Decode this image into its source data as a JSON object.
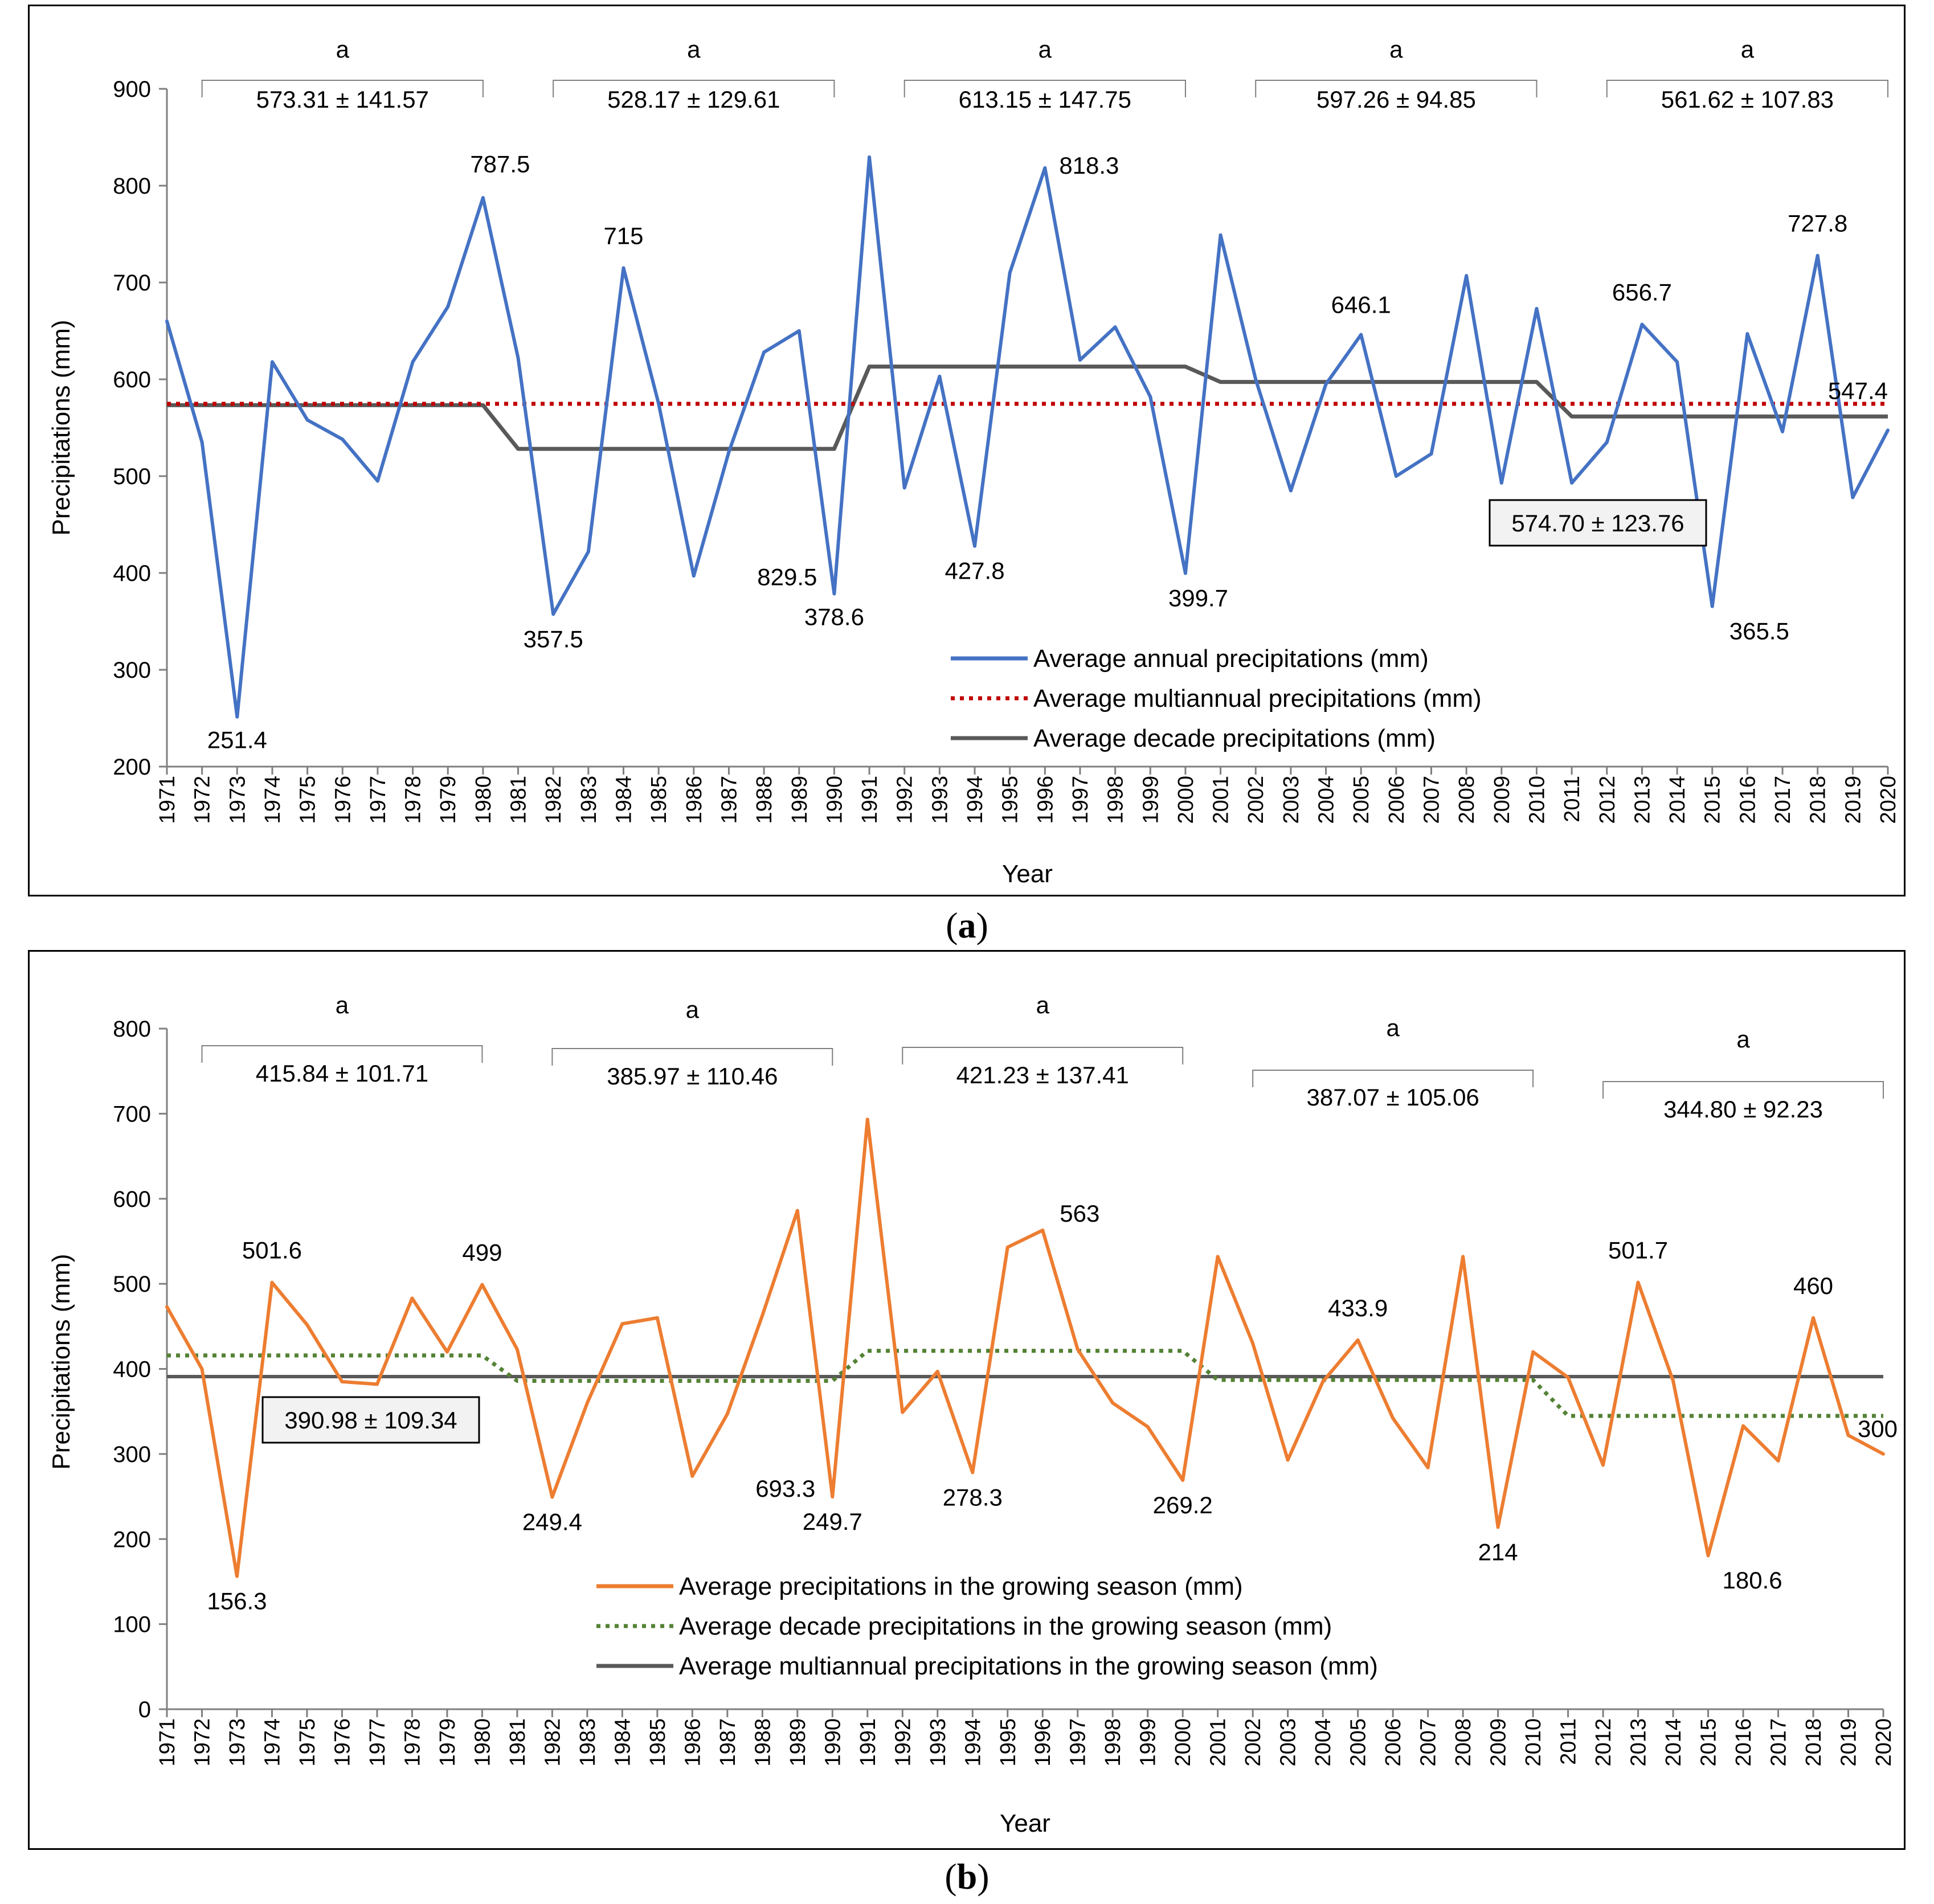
{
  "chart_data": [
    {
      "type": "line",
      "panel_label": "a",
      "xlabel": "Year",
      "ylabel": "Precipitations (mm)",
      "ylim": [
        200,
        900
      ],
      "yticks": [
        200,
        300,
        400,
        500,
        600,
        700,
        800,
        900
      ],
      "x": [
        1971,
        1972,
        1973,
        1974,
        1975,
        1976,
        1977,
        1978,
        1979,
        1980,
        1981,
        1982,
        1983,
        1984,
        1985,
        1986,
        1987,
        1988,
        1989,
        1990,
        1991,
        1992,
        1993,
        1994,
        1995,
        1996,
        1997,
        1998,
        1999,
        2000,
        2001,
        2002,
        2003,
        2004,
        2005,
        2006,
        2007,
        2008,
        2009,
        2010,
        2011,
        2012,
        2013,
        2014,
        2015,
        2016,
        2017,
        2018,
        2019,
        2020
      ],
      "series": [
        {
          "name": "Average annual precipitations (mm)",
          "color": "#4472c4",
          "style": "solid",
          "values": [
            660,
            535,
            251.4,
            618,
            558,
            538,
            495,
            618,
            675,
            787.5,
            622,
            357.5,
            422,
            715,
            575,
            397,
            525,
            628,
            650,
            378.6,
            829.5,
            488,
            603,
            427.8,
            710,
            818.3,
            620,
            654,
            582,
            399.7,
            749,
            600,
            485,
            595,
            646.1,
            500,
            523,
            707,
            493,
            673,
            493,
            535,
            656.7,
            618,
            365.5,
            647,
            546,
            727.8,
            478,
            547.4
          ]
        },
        {
          "name": "Average multiannual precipitations (mm)",
          "color": "#c00000",
          "style": "dotted",
          "value": 574.7
        },
        {
          "name": "Average decade precipitations (mm)",
          "color": "#595959",
          "style": "solid",
          "decades": [
            573.31,
            528.17,
            613.15,
            597.26,
            561.62
          ]
        }
      ],
      "point_labels": [
        {
          "year": 1973,
          "text": "251.4"
        },
        {
          "year": 1980,
          "text": "787.5"
        },
        {
          "year": 1982,
          "text": "357.5"
        },
        {
          "year": 1984,
          "text": "715"
        },
        {
          "year": 1990,
          "text": "829.5"
        },
        {
          "year": 1990,
          "text": "378.6"
        },
        {
          "year": 1994,
          "text": "427.8"
        },
        {
          "year": 1996,
          "text": "818.3"
        },
        {
          "year": 2000,
          "text": "399.7"
        },
        {
          "year": 2005,
          "text": "646.1"
        },
        {
          "year": 2013,
          "text": "656.7"
        },
        {
          "year": 2015,
          "text": "365.5"
        },
        {
          "year": 2018,
          "text": "727.8"
        },
        {
          "year": 2020,
          "text": "547.4"
        }
      ],
      "decade_stats": [
        "573.31 ± 141.57",
        "528.17 ± 129.61",
        "613.15 ± 147.75",
        "597.26 ± 94.85",
        "561.62 ± 107.83"
      ],
      "decade_letter": "a",
      "overall_stat": "574.70 ± 123.76"
    },
    {
      "type": "line",
      "panel_label": "b",
      "xlabel": "Year",
      "ylabel": "Precipitations (mm)",
      "ylim": [
        0,
        800
      ],
      "yticks": [
        0,
        100,
        200,
        300,
        400,
        500,
        600,
        700,
        800
      ],
      "x": [
        1971,
        1972,
        1973,
        1974,
        1975,
        1976,
        1977,
        1978,
        1979,
        1980,
        1981,
        1982,
        1983,
        1984,
        1985,
        1986,
        1987,
        1988,
        1989,
        1990,
        1991,
        1992,
        1993,
        1994,
        1995,
        1996,
        1997,
        1998,
        1999,
        2000,
        2001,
        2002,
        2003,
        2004,
        2005,
        2006,
        2007,
        2008,
        2009,
        2010,
        2011,
        2012,
        2013,
        2014,
        2015,
        2016,
        2017,
        2018,
        2019,
        2020
      ],
      "series": [
        {
          "name": "Average precipitations in the growing season (mm)",
          "color": "#ed7d31",
          "style": "solid",
          "values": [
            473,
            400,
            156.3,
            501.6,
            452,
            385,
            382,
            483,
            420,
            499,
            423,
            249.4,
            360,
            453,
            460,
            274,
            347,
            463,
            586,
            249.7,
            693.3,
            349,
            397,
            278.3,
            543,
            563,
            423,
            360,
            332,
            269.2,
            532,
            430,
            293,
            385,
            433.9,
            342,
            284,
            532,
            214,
            420,
            390,
            287,
            501.7,
            386,
            180.6,
            333,
            292,
            460,
            322,
            300
          ]
        },
        {
          "name": "Average decade precipitations in the growing season (mm)",
          "color": "#548235",
          "style": "dotted",
          "decades": [
            415.84,
            385.97,
            421.23,
            387.07,
            344.8
          ]
        },
        {
          "name": "Average multiannual precipitations in the growing season (mm)",
          "color": "#595959",
          "style": "solid",
          "value": 390.98
        }
      ],
      "point_labels": [
        {
          "year": 1973,
          "text": "156.3"
        },
        {
          "year": 1974,
          "text": "501.6"
        },
        {
          "year": 1980,
          "text": "499"
        },
        {
          "year": 1982,
          "text": "249.4"
        },
        {
          "year": 1990,
          "text": "693.3"
        },
        {
          "year": 1990,
          "text": "249.7"
        },
        {
          "year": 1994,
          "text": "278.3"
        },
        {
          "year": 1996,
          "text": "563"
        },
        {
          "year": 2000,
          "text": "269.2"
        },
        {
          "year": 2005,
          "text": "433.9"
        },
        {
          "year": 2009,
          "text": "214"
        },
        {
          "year": 2013,
          "text": "501.7"
        },
        {
          "year": 2015,
          "text": "180.6"
        },
        {
          "year": 2018,
          "text": "460"
        },
        {
          "year": 2020,
          "text": "300"
        }
      ],
      "decade_stats": [
        "415.84 ± 101.71",
        "385.97 ± 110.46",
        "421.23 ± 137.41",
        "387.07 ± 105.06",
        "344.80 ± 92.23"
      ],
      "decade_letter": "a",
      "overall_stat": "390.98 ± 109.34"
    }
  ]
}
